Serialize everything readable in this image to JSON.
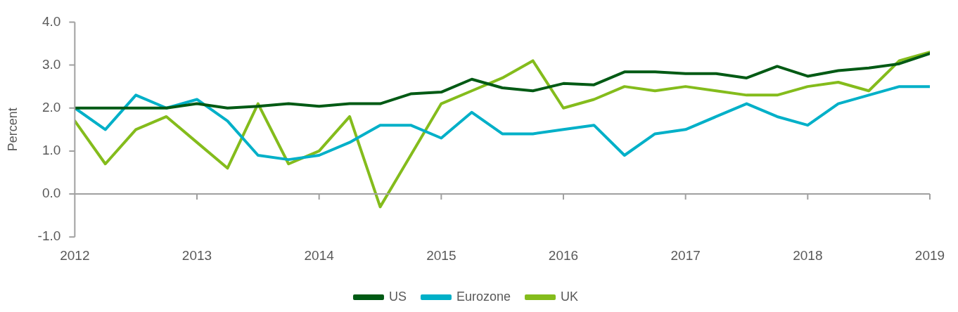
{
  "chart_data": {
    "type": "line",
    "ylabel": "Percent",
    "x": [
      2012,
      2012.25,
      2012.5,
      2012.75,
      2013,
      2013.25,
      2013.5,
      2013.75,
      2014,
      2014.25,
      2014.5,
      2014.75,
      2015,
      2015.25,
      2015.5,
      2015.75,
      2016,
      2016.25,
      2016.5,
      2016.75,
      2017,
      2017.25,
      2017.5,
      2017.75,
      2018,
      2018.25,
      2018.5,
      2018.75,
      2019
    ],
    "series": [
      {
        "name": "US",
        "color": "#005a14",
        "values": [
          2.0,
          2.0,
          2.0,
          2.0,
          2.1,
          2.0,
          2.04,
          2.1,
          2.04,
          2.1,
          2.1,
          2.33,
          2.37,
          2.67,
          2.47,
          2.4,
          2.57,
          2.54,
          2.84,
          2.84,
          2.8,
          2.8,
          2.7,
          2.97,
          2.74,
          2.87,
          2.93,
          3.03,
          3.27
        ]
      },
      {
        "name": "Eurozone",
        "color": "#00b0c8",
        "values": [
          2.0,
          1.5,
          2.3,
          2.0,
          2.2,
          1.7,
          0.9,
          0.8,
          0.9,
          1.2,
          1.6,
          1.6,
          1.3,
          1.9,
          1.4,
          1.4,
          1.5,
          1.6,
          0.9,
          1.4,
          1.5,
          1.8,
          2.1,
          1.8,
          1.6,
          2.1,
          2.3,
          2.5,
          2.5
        ]
      },
      {
        "name": "UK",
        "color": "#84bc1c",
        "values": [
          1.7,
          0.7,
          1.5,
          1.8,
          1.2,
          0.6,
          2.1,
          0.7,
          1.0,
          1.8,
          -0.3,
          0.9,
          2.1,
          2.4,
          2.7,
          3.1,
          2.0,
          2.2,
          2.5,
          2.4,
          2.5,
          2.4,
          2.3,
          2.3,
          2.5,
          2.6,
          2.4,
          3.1,
          3.3
        ]
      }
    ],
    "xlim": [
      2012,
      2019
    ],
    "xticks": [
      2012,
      2013,
      2014,
      2015,
      2016,
      2017,
      2018,
      2019
    ],
    "ylim": [
      -1,
      4
    ],
    "yticks": [
      {
        "value": -1,
        "label": "-1.0"
      },
      {
        "value": 0,
        "label": "0.0"
      },
      {
        "value": 1,
        "label": "1.0"
      },
      {
        "value": 2,
        "label": "2.0"
      },
      {
        "value": 3,
        "label": "3.0"
      },
      {
        "value": 4,
        "label": "4.0"
      }
    ],
    "legend": "bottom",
    "line_style": "solid"
  }
}
